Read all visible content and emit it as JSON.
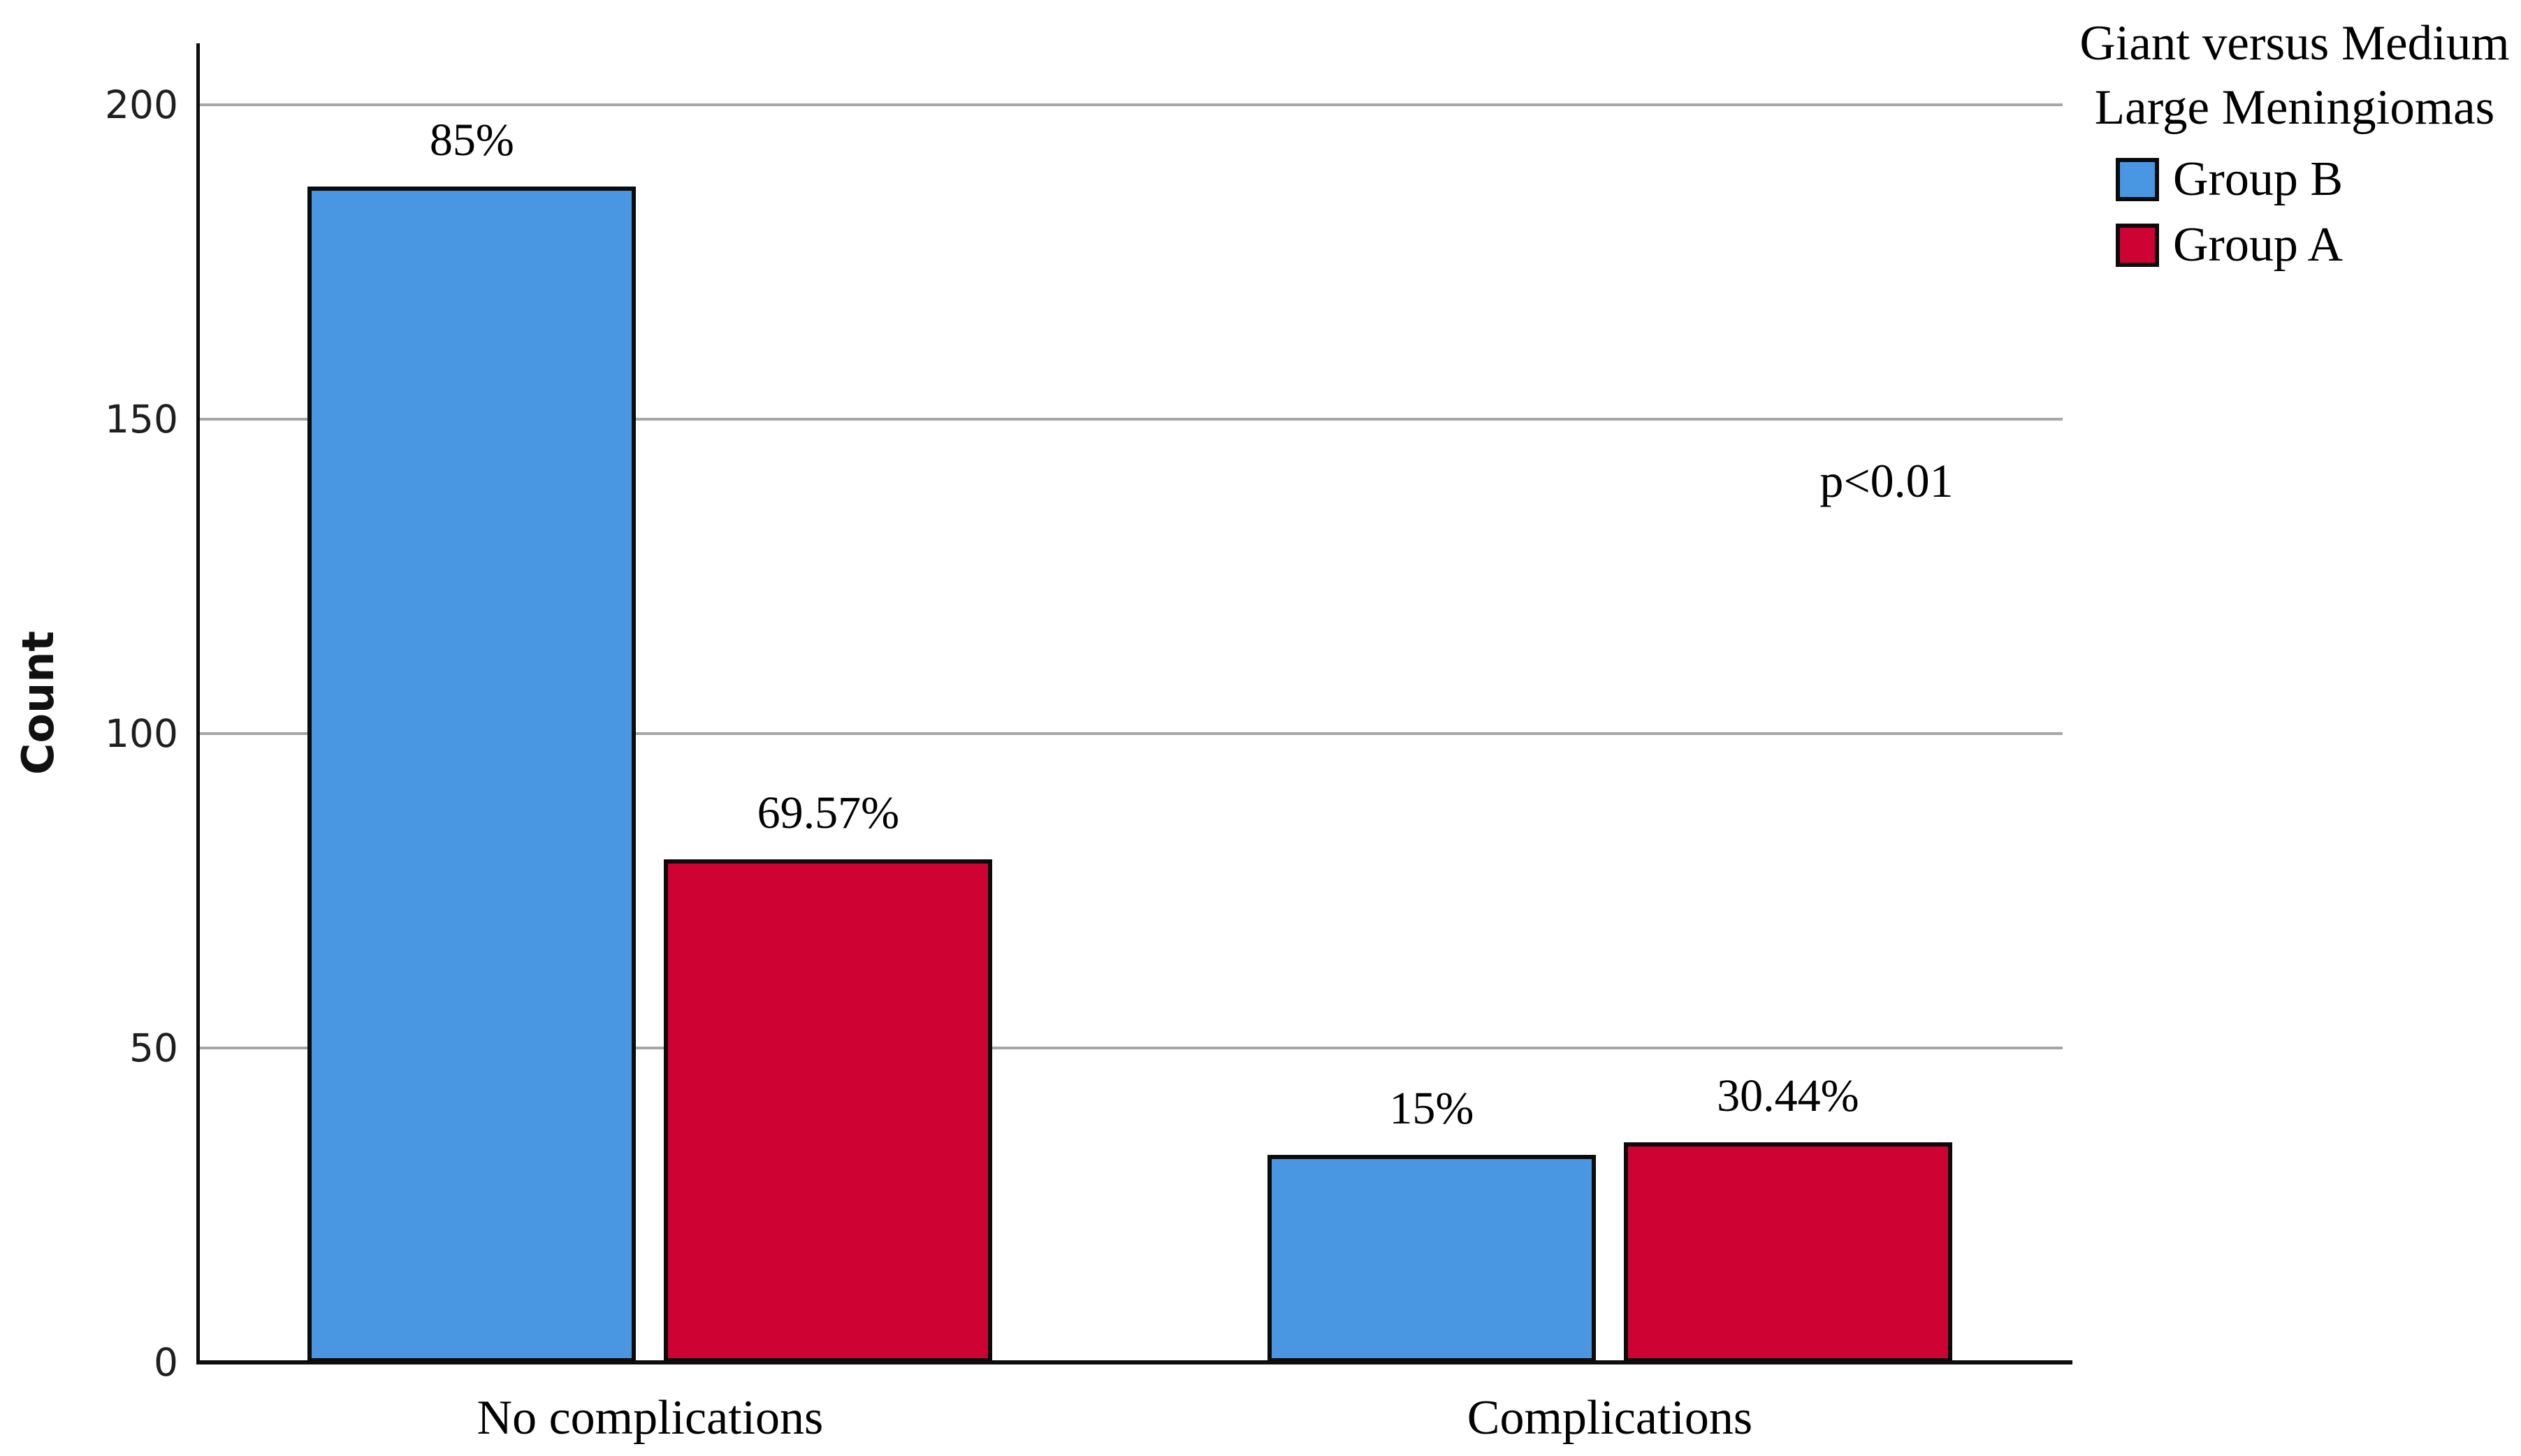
{
  "figure": {
    "background": "#ffffff",
    "text_color": "#000000",
    "gridline_color": "#a6a6a6",
    "axis_color": "#0d0d0d"
  },
  "chart_data": {
    "type": "bar",
    "orientation": "vertical",
    "title": "",
    "xlabel": "",
    "ylabel": "Count",
    "categories": [
      "No complications",
      "Complications"
    ],
    "series": [
      {
        "name": "Group B",
        "color": "#4997E3",
        "values": [
          187,
          33
        ],
        "percent_labels": [
          "85%",
          "15%"
        ]
      },
      {
        "name": "Group A",
        "color": "#CE0233",
        "values": [
          80,
          35
        ],
        "percent_labels": [
          "69.57%",
          "30.44%"
        ]
      }
    ],
    "yticks": [
      0,
      50,
      100,
      150,
      200
    ],
    "ylim": [
      0,
      209
    ],
    "grid": "horizontal",
    "annotation": "p<0.01",
    "legend": {
      "title_lines": [
        "Giant versus Medium",
        "Large Meningiomas"
      ],
      "position": "top-right"
    }
  }
}
